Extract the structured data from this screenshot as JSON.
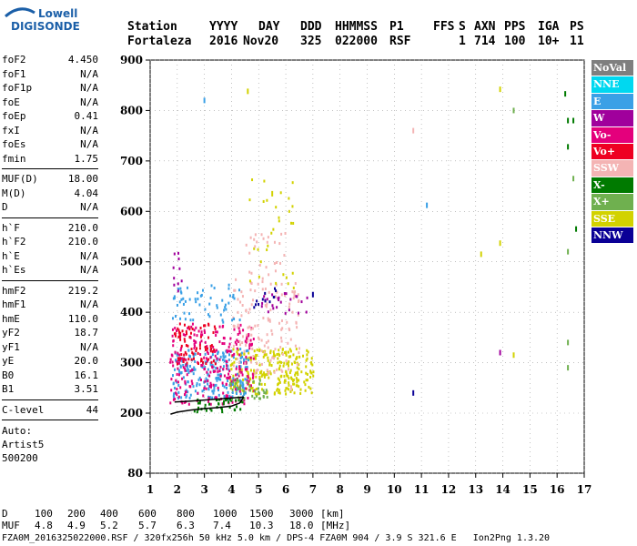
{
  "logo": {
    "line1": "Lowell",
    "line2": "DIGISONDE"
  },
  "header": {
    "labels": [
      "Station",
      "YYYY",
      "DAY",
      "DDD",
      "HHMMSS",
      "P1",
      "FFS",
      "S",
      "AXN",
      "PPS",
      "IGA",
      "PS"
    ],
    "values": [
      "Fortaleza",
      "2016",
      "Nov20",
      "325",
      "022000",
      "RSF",
      "",
      "1",
      "714",
      "100",
      "10+",
      "11"
    ]
  },
  "params": {
    "group1": [
      {
        "k": "foF2",
        "v": "4.450"
      },
      {
        "k": "foF1",
        "v": "N/A"
      },
      {
        "k": "foF1p",
        "v": "N/A"
      },
      {
        "k": "foE",
        "v": "N/A"
      },
      {
        "k": "foEp",
        "v": "0.41"
      },
      {
        "k": "fxI",
        "v": "N/A"
      },
      {
        "k": "foEs",
        "v": "N/A"
      },
      {
        "k": "fmin",
        "v": "1.75"
      }
    ],
    "group2": [
      {
        "k": "MUF(D)",
        "v": "18.00"
      },
      {
        "k": "M(D)",
        "v": "4.04"
      },
      {
        "k": "D",
        "v": "N/A"
      }
    ],
    "group3": [
      {
        "k": "h`F",
        "v": "210.0"
      },
      {
        "k": "h`F2",
        "v": "210.0"
      },
      {
        "k": "h`E",
        "v": "N/A"
      },
      {
        "k": "h`Es",
        "v": "N/A"
      }
    ],
    "group4": [
      {
        "k": "hmF2",
        "v": "219.2"
      },
      {
        "k": "hmF1",
        "v": "N/A"
      },
      {
        "k": "hmE",
        "v": "110.0"
      },
      {
        "k": "yF2",
        "v": "18.7"
      },
      {
        "k": "yF1",
        "v": "N/A"
      },
      {
        "k": "yE",
        "v": "20.0"
      },
      {
        "k": "B0",
        "v": "16.1"
      },
      {
        "k": "B1",
        "v": "3.51"
      }
    ],
    "group5": [
      {
        "k": "C-level",
        "v": "44"
      }
    ],
    "auto": [
      "Auto:",
      "Artist5",
      "500200"
    ]
  },
  "legend": [
    {
      "label": "NoVal",
      "color": "#7f7f7f"
    },
    {
      "label": "NNE",
      "color": "#00d8f0"
    },
    {
      "label": "E",
      "color": "#3aa0e6"
    },
    {
      "label": "W",
      "color": "#a0009c"
    },
    {
      "label": "Vo-",
      "color": "#e4007c"
    },
    {
      "label": "Vo+",
      "color": "#ee0022"
    },
    {
      "label": "SSW",
      "color": "#f4b4b4"
    },
    {
      "label": "X-",
      "color": "#007a00"
    },
    {
      "label": "X+",
      "color": "#6fb04f"
    },
    {
      "label": "SSE",
      "color": "#d2d200"
    },
    {
      "label": "NNW",
      "color": "#0a0096"
    }
  ],
  "bottom": {
    "d_label": "D",
    "d_values": [
      "100",
      "200",
      "400",
      "600",
      "800",
      "1000",
      "1500",
      "3000"
    ],
    "d_unit": "[km]",
    "muf_label": "MUF",
    "muf_values": [
      "4.8",
      "4.9",
      "5.2",
      "5.7",
      "6.3",
      "7.4",
      "10.3",
      "18.0"
    ],
    "muf_unit": "[MHz]"
  },
  "footer": "FZA0M_2016325022000.RSF / 320fx256h 50 kHz 5.0 km / DPS-4 FZA0M 904 / 3.9 S 321.6 E   Ion2Png 1.3.20",
  "chart_data": {
    "type": "scatter",
    "xlim": [
      1,
      17
    ],
    "ylim": [
      80,
      900
    ],
    "x_ticks": [
      1,
      2,
      3,
      4,
      5,
      6,
      7,
      8,
      9,
      10,
      11,
      12,
      13,
      14,
      15,
      16,
      17
    ],
    "y_ticks": [
      80,
      200,
      300,
      400,
      500,
      600,
      700,
      800,
      900
    ],
    "grid": true,
    "traces": [
      {
        "name": "X-",
        "color": "#000000",
        "x": [
          1.75,
          2.0,
          2.5,
          3.0,
          3.5,
          4.0,
          4.3,
          4.45
        ],
        "y": [
          198,
          202,
          206,
          209,
          211,
          214,
          220,
          232
        ]
      },
      {
        "name": "",
        "color": "#000000",
        "x": [
          1.9,
          2.5,
          3.0,
          3.5,
          4.0,
          4.45
        ],
        "y": [
          222,
          224,
          226,
          228,
          230,
          232
        ]
      }
    ],
    "clusters": [
      {
        "color": "#d2d200",
        "x": [
          3.9,
          7.0
        ],
        "y": [
          240,
          330
        ],
        "n": 260
      },
      {
        "color": "#3aa0e6",
        "x": [
          1.8,
          4.6
        ],
        "y": [
          230,
          330
        ],
        "n": 220
      },
      {
        "color": "#e4007c",
        "x": [
          1.7,
          4.8
        ],
        "y": [
          220,
          380
        ],
        "n": 260
      },
      {
        "color": "#ee0022",
        "x": [
          1.8,
          3.4
        ],
        "y": [
          300,
          380
        ],
        "n": 80
      },
      {
        "color": "#f4b4b4",
        "x": [
          4.0,
          6.5
        ],
        "y": [
          280,
          470
        ],
        "n": 140
      },
      {
        "color": "#3aa0e6",
        "x": [
          1.8,
          4.3
        ],
        "y": [
          380,
          460
        ],
        "n": 60
      },
      {
        "color": "#a0009c",
        "x": [
          5.0,
          6.8
        ],
        "y": [
          400,
          440
        ],
        "n": 25
      },
      {
        "color": "#0a0096",
        "x": [
          4.8,
          5.8
        ],
        "y": [
          380,
          450
        ],
        "n": 12
      },
      {
        "color": "#007a00",
        "x": [
          2.6,
          4.4
        ],
        "y": [
          205,
          230
        ],
        "n": 40
      },
      {
        "color": "#6fb04f",
        "x": [
          3.9,
          5.3
        ],
        "y": [
          230,
          270
        ],
        "n": 40
      },
      {
        "color": "#d2d200",
        "x": [
          4.5,
          6.3
        ],
        "y": [
          450,
          670
        ],
        "n": 30
      },
      {
        "color": "#f4b4b4",
        "x": [
          4.5,
          6.0
        ],
        "y": [
          470,
          560
        ],
        "n": 25
      },
      {
        "color": "#a0009c",
        "x": [
          1.8,
          2.2
        ],
        "y": [
          420,
          520
        ],
        "n": 10
      }
    ],
    "scattered": [
      {
        "x": 3.0,
        "y": 820,
        "color": "#3aa0e6"
      },
      {
        "x": 4.6,
        "y": 838,
        "color": "#d2d200"
      },
      {
        "x": 10.7,
        "y": 760,
        "color": "#f4b4b4"
      },
      {
        "x": 11.2,
        "y": 612,
        "color": "#3aa0e6"
      },
      {
        "x": 10.7,
        "y": 240,
        "color": "#0a0096"
      },
      {
        "x": 13.2,
        "y": 515,
        "color": "#d2d200"
      },
      {
        "x": 13.9,
        "y": 842,
        "color": "#d2d200"
      },
      {
        "x": 13.9,
        "y": 537,
        "color": "#d2d200"
      },
      {
        "x": 13.9,
        "y": 320,
        "color": "#a0009c"
      },
      {
        "x": 14.4,
        "y": 800,
        "color": "#6fb04f"
      },
      {
        "x": 14.4,
        "y": 315,
        "color": "#d2d200"
      },
      {
        "x": 16.3,
        "y": 833,
        "color": "#007a00"
      },
      {
        "x": 16.4,
        "y": 780,
        "color": "#007a00"
      },
      {
        "x": 16.6,
        "y": 780,
        "color": "#007a00"
      },
      {
        "x": 16.4,
        "y": 728,
        "color": "#007a00"
      },
      {
        "x": 16.6,
        "y": 665,
        "color": "#6fb04f"
      },
      {
        "x": 16.7,
        "y": 565,
        "color": "#007a00"
      },
      {
        "x": 16.4,
        "y": 520,
        "color": "#6fb04f"
      },
      {
        "x": 16.4,
        "y": 340,
        "color": "#6fb04f"
      },
      {
        "x": 16.4,
        "y": 290,
        "color": "#6fb04f"
      },
      {
        "x": 7.0,
        "y": 435,
        "color": "#0a0096"
      },
      {
        "x": 6.2,
        "y": 250,
        "color": "#f4b4b4"
      },
      {
        "x": 5.5,
        "y": 635,
        "color": "#d2d200"
      }
    ]
  }
}
